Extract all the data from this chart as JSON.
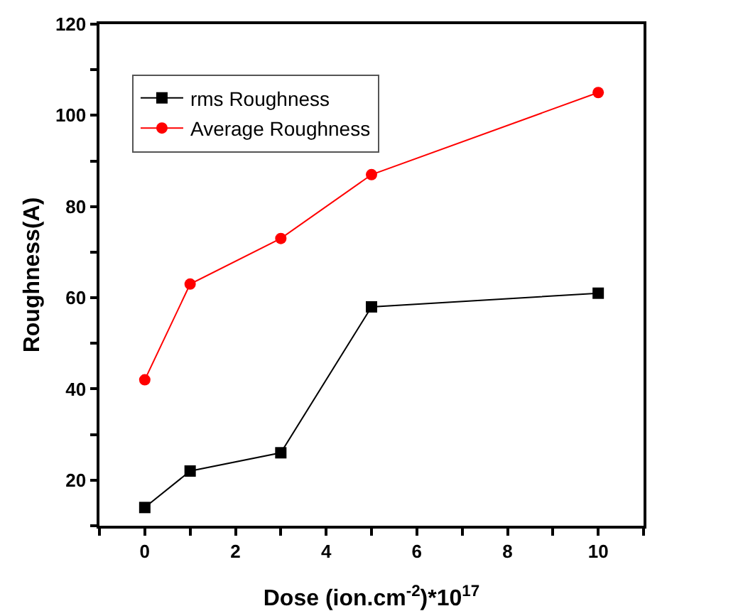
{
  "chart_data": {
    "type": "line",
    "xlabel": "Dose (ion.cm$^{-2}$)*10$^{17}$",
    "ylabel": "Roughness(A)",
    "x": [
      0,
      1,
      3,
      5,
      10
    ],
    "series": [
      {
        "name": "rms Roughness",
        "color": "#000000",
        "marker": "square",
        "values": [
          14,
          22,
          26,
          58,
          61
        ]
      },
      {
        "name": "Average Roughness",
        "color": "#ff0000",
        "marker": "circle",
        "values": [
          42,
          63,
          73,
          87,
          105
        ]
      }
    ],
    "xlim": [
      -1,
      11
    ],
    "xticks": [
      {
        "value": -1,
        "label": null
      },
      0,
      {
        "value": 1,
        "label": null
      },
      2,
      {
        "value": 3,
        "label": null
      },
      4,
      {
        "value": 5,
        "label": null
      },
      6,
      {
        "value": 7,
        "label": null
      },
      8,
      {
        "value": 9,
        "label": null
      },
      10,
      {
        "value": 11,
        "label": null
      }
    ],
    "ylim": [
      10,
      120
    ],
    "yticks": [
      {
        "value": 10,
        "label": null
      },
      20,
      {
        "value": 30,
        "label": null
      },
      40,
      {
        "value": 50,
        "label": null
      },
      60,
      {
        "value": 70,
        "label": null
      },
      80,
      {
        "value": 90,
        "label": null
      },
      100,
      {
        "value": 110,
        "label": null
      },
      120
    ],
    "grid": false,
    "legend": "top left",
    "line_style": "solid"
  }
}
